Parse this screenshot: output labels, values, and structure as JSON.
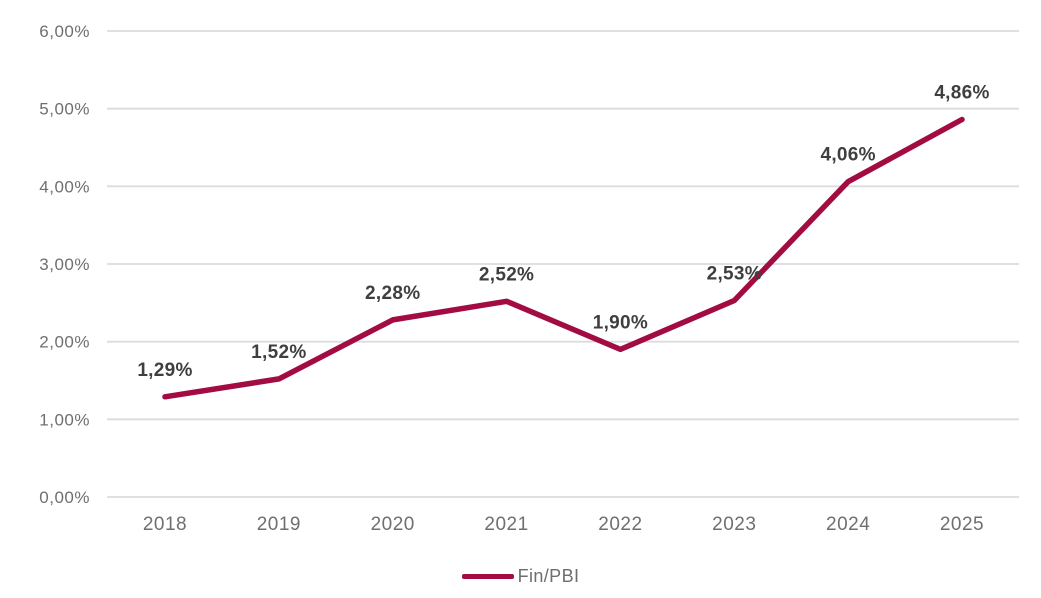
{
  "chart_data": {
    "type": "line",
    "title": "",
    "xlabel": "",
    "ylabel": "",
    "categories": [
      "2018",
      "2019",
      "2020",
      "2021",
      "2022",
      "2023",
      "2024",
      "2025"
    ],
    "series": [
      {
        "name": "Fin/PBI",
        "values": [
          1.29,
          1.52,
          2.28,
          2.52,
          1.9,
          2.53,
          4.06,
          4.86
        ],
        "labels": [
          "1,29%",
          "1,52%",
          "2,28%",
          "2,52%",
          "1,90%",
          "2,53%",
          "4,06%",
          "4,86%"
        ],
        "color": "#a20c42"
      }
    ],
    "ylim": [
      0,
      6
    ],
    "ytick_step": 1,
    "yticks": [
      "0,00%",
      "1,00%",
      "2,00%",
      "3,00%",
      "4,00%",
      "5,00%",
      "6,00%"
    ],
    "grid": true,
    "legend_position": "bottom",
    "colors": {
      "gridline": "#dcdcdc",
      "axis_text": "#6f6f6f",
      "data_label_text": "#3f3f3f",
      "background": "#ffffff"
    }
  }
}
